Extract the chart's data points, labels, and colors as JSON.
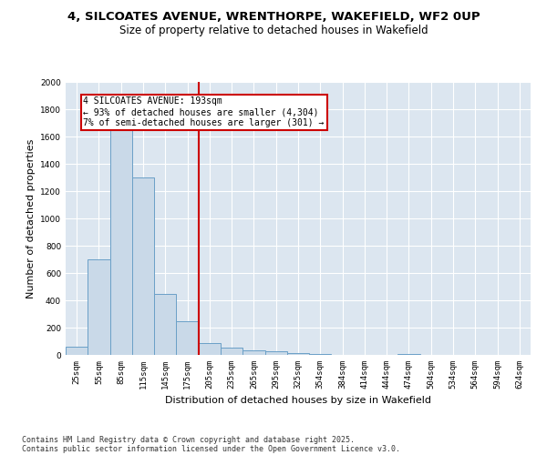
{
  "title_line1": "4, SILCOATES AVENUE, WRENTHORPE, WAKEFIELD, WF2 0UP",
  "title_line2": "Size of property relative to detached houses in Wakefield",
  "xlabel": "Distribution of detached houses by size in Wakefield",
  "ylabel": "Number of detached properties",
  "categories": [
    "25sqm",
    "55sqm",
    "85sqm",
    "115sqm",
    "145sqm",
    "175sqm",
    "205sqm",
    "235sqm",
    "265sqm",
    "295sqm",
    "325sqm",
    "354sqm",
    "384sqm",
    "414sqm",
    "444sqm",
    "474sqm",
    "504sqm",
    "534sqm",
    "564sqm",
    "594sqm",
    "624sqm"
  ],
  "values": [
    60,
    700,
    1650,
    1300,
    450,
    245,
    90,
    55,
    35,
    25,
    15,
    5,
    3,
    0,
    0,
    5,
    0,
    0,
    0,
    0,
    0
  ],
  "bar_color": "#c9d9e8",
  "bar_edge_color": "#6aa0c7",
  "vline_x": 5.5,
  "vline_color": "#cc0000",
  "annotation_text": "4 SILCOATES AVENUE: 193sqm\n← 93% of detached houses are smaller (4,304)\n7% of semi-detached houses are larger (301) →",
  "annotation_box_color": "#cc0000",
  "ylim": [
    0,
    2000
  ],
  "yticks": [
    0,
    200,
    400,
    600,
    800,
    1000,
    1200,
    1400,
    1600,
    1800,
    2000
  ],
  "plot_bg_color": "#dce6f0",
  "grid_color": "#ffffff",
  "fig_bg_color": "#ffffff",
  "footer_line1": "Contains HM Land Registry data © Crown copyright and database right 2025.",
  "footer_line2": "Contains public sector information licensed under the Open Government Licence v3.0.",
  "title_fontsize": 9.5,
  "subtitle_fontsize": 8.5,
  "axis_label_fontsize": 8,
  "tick_fontsize": 6.5,
  "footer_fontsize": 6
}
